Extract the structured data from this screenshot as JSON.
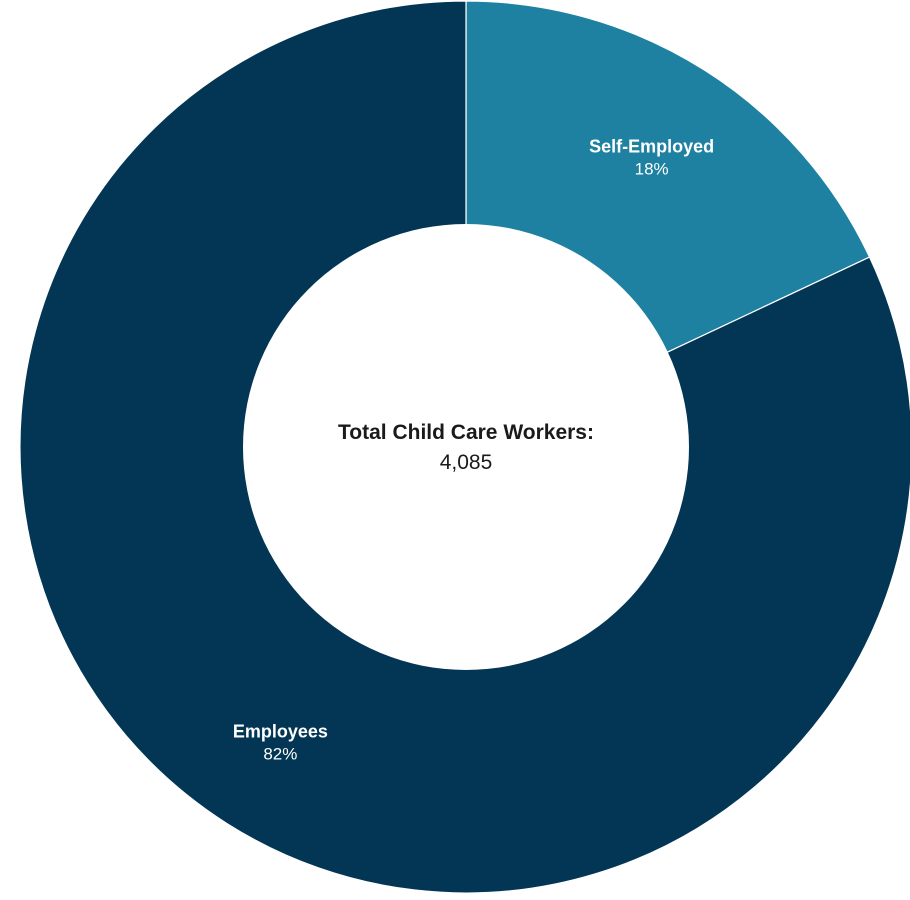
{
  "chart_data": {
    "type": "pie",
    "variant": "donut",
    "categories": [
      "Self-Employed",
      "Employees"
    ],
    "values": [
      18,
      82
    ],
    "value_labels": [
      "18%",
      "82%"
    ],
    "colors": [
      "#1f81a1",
      "#023654"
    ],
    "center_label": {
      "title": "Total Child Care Workers:",
      "value": "4,085"
    },
    "legend": "none",
    "start_angle": "12 o'clock",
    "direction": "clockwise"
  }
}
